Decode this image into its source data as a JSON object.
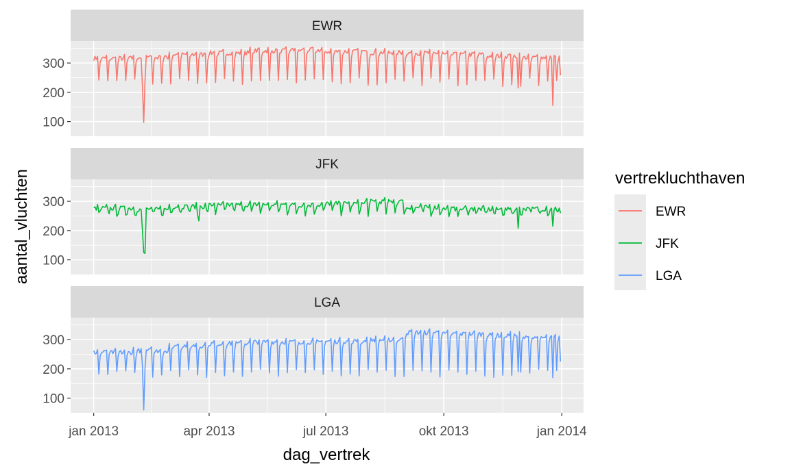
{
  "chart_data": {
    "type": "line",
    "facet_layout": "stacked-rows",
    "xlabel": "dag_vertrek",
    "ylabel": "aantal_vluchten",
    "x_range": [
      "2012-12-14",
      "2014-01-18"
    ],
    "x_ticks": [
      {
        "date": "2013-01-01",
        "label": "jan 2013"
      },
      {
        "date": "2013-04-01",
        "label": "apr 2013"
      },
      {
        "date": "2013-07-01",
        "label": "jul 2013"
      },
      {
        "date": "2013-10-01",
        "label": "okt 2013"
      },
      {
        "date": "2014-01-01",
        "label": "jan 2014"
      }
    ],
    "ylim": [
      50,
      375
    ],
    "y_ticks": [
      100,
      200,
      300
    ],
    "legend": {
      "title": "vertrekluchthaven",
      "position": "right"
    },
    "series": [
      {
        "name": "EWR",
        "color": "#F8766D",
        "panel_label": "EWR",
        "start_date": "2013-01-01",
        "weekday_base_by_month": [
          322,
          325,
          335,
          340,
          348,
          350,
          345,
          342,
          340,
          335,
          330,
          325
        ],
        "weekend_values": [
          235,
          225
        ],
        "events": [
          {
            "date": "2013-02-08",
            "value": 220
          },
          {
            "date": "2013-02-09",
            "value": 97
          },
          {
            "date": "2013-02-10",
            "value": 240
          },
          {
            "date": "2013-11-28",
            "value": 215
          },
          {
            "date": "2013-12-25",
            "value": 155
          },
          {
            "date": "2013-12-31",
            "value": 258
          }
        ]
      },
      {
        "name": "JFK",
        "color": "#00BA38",
        "panel_label": "JFK",
        "start_date": "2013-01-01",
        "weekday_base_by_month": [
          282,
          278,
          288,
          293,
          295,
          293,
          298,
          305,
          285,
          280,
          278,
          280
        ],
        "weekend_values": [
          262,
          255
        ],
        "events": [
          {
            "date": "2013-02-08",
            "value": 200
          },
          {
            "date": "2013-02-09",
            "value": 125
          },
          {
            "date": "2013-02-10",
            "value": 122
          },
          {
            "date": "2013-03-24",
            "value": 233
          },
          {
            "date": "2013-11-28",
            "value": 208
          },
          {
            "date": "2013-12-25",
            "value": 215
          },
          {
            "date": "2013-12-31",
            "value": 260
          }
        ]
      },
      {
        "name": "LGA",
        "color": "#619CFF",
        "panel_label": "LGA",
        "start_date": "2013-01-01",
        "weekday_base_by_month": [
          262,
          268,
          285,
          292,
          298,
          298,
          300,
          305,
          330,
          325,
          320,
          312
        ],
        "weekend_values": [
          185,
          175
        ],
        "events": [
          {
            "date": "2013-02-08",
            "value": 210
          },
          {
            "date": "2013-02-09",
            "value": 60
          },
          {
            "date": "2013-02-10",
            "value": 200
          },
          {
            "date": "2013-11-28",
            "value": 190
          },
          {
            "date": "2013-12-25",
            "value": 170
          },
          {
            "date": "2013-12-31",
            "value": 225
          }
        ]
      }
    ]
  }
}
